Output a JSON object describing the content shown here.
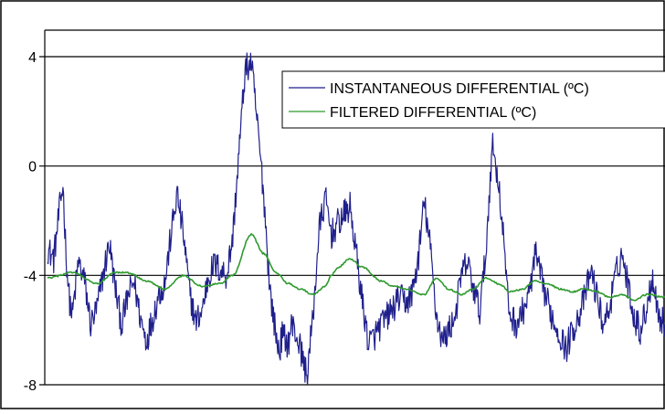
{
  "chart_data": {
    "type": "line",
    "ylim": [
      -8,
      4
    ],
    "yticks": [
      4,
      0,
      -4,
      -8
    ],
    "ytick_labels": [
      "4",
      "0",
      "-4",
      "-8"
    ],
    "grid": "horizontal",
    "legend_position": "top-right",
    "x_range": [
      0,
      100
    ],
    "series": [
      {
        "name": "INSTANTANEOUS DIFFERENTIAL (ºC)",
        "color": "#1f1f8c",
        "x": [
          0,
          1,
          2,
          2.5,
          3,
          3.5,
          4,
          5,
          6,
          7,
          8,
          9,
          10,
          11,
          12,
          13,
          14,
          15,
          16,
          17,
          18,
          19,
          20,
          21,
          22,
          23,
          24,
          25,
          26,
          27,
          28,
          29,
          30,
          31,
          32,
          33,
          34,
          35,
          36,
          37,
          37.5,
          38,
          39,
          39.5,
          40,
          41,
          42,
          43,
          44,
          45,
          46,
          47,
          48,
          49,
          50,
          51,
          52,
          53,
          54,
          55,
          56,
          57,
          58,
          59,
          60,
          61,
          62,
          63,
          64,
          65,
          66,
          67,
          68,
          69,
          70,
          71,
          72,
          73,
          74,
          74.5,
          75,
          76,
          77,
          78,
          79,
          80,
          81,
          82,
          83,
          84,
          85,
          86,
          87,
          88,
          89,
          90,
          91,
          92,
          93,
          94,
          95,
          96,
          97,
          98,
          99,
          100
        ],
        "values": [
          -3.0,
          -3.4,
          -1.5,
          -0.7,
          -3.2,
          -4.8,
          -5.5,
          -3.5,
          -4.2,
          -5.8,
          -5.2,
          -4.0,
          -2.8,
          -4.5,
          -5.8,
          -4.8,
          -4.2,
          -5.5,
          -6.4,
          -5.6,
          -4.7,
          -4.3,
          -2.5,
          -1.0,
          -2.5,
          -4.6,
          -5.7,
          -5.3,
          -4.1,
          -3.6,
          -3.8,
          -4.0,
          -2.6,
          0.5,
          3.5,
          3.8,
          1.5,
          -1.0,
          -4.5,
          -6.2,
          -6.8,
          -6.2,
          -6.5,
          -5.8,
          -6.0,
          -6.7,
          -7.7,
          -5.5,
          -2.3,
          -1.2,
          -2.5,
          -2.1,
          -1.8,
          -1.5,
          -3.2,
          -5.0,
          -6.5,
          -6.2,
          -5.8,
          -5.5,
          -5.2,
          -4.8,
          -5.0,
          -4.7,
          -3.5,
          -1.3,
          -3.0,
          -5.5,
          -6.4,
          -6.0,
          -5.5,
          -4.0,
          -3.5,
          -4.5,
          -5.3,
          -3.2,
          0.8,
          -0.5,
          -3.0,
          -4.8,
          -5.5,
          -5.8,
          -5.3,
          -4.7,
          -3.2,
          -4.2,
          -5.0,
          -5.7,
          -6.2,
          -6.7,
          -6.0,
          -5.5,
          -4.8,
          -3.8,
          -4.8,
          -5.8,
          -5.2,
          -4.0,
          -3.2,
          -4.3,
          -5.5,
          -6.0,
          -5.2,
          -4.0,
          -5.5,
          -5.8
        ]
      },
      {
        "name": "FILTERED DIFFERENTIAL (ºC)",
        "color": "#2e9a2e",
        "x": [
          0,
          4,
          8,
          11,
          13,
          16,
          19,
          22,
          25,
          28,
          30,
          33,
          35,
          37,
          39,
          41,
          43,
          45,
          46,
          47,
          49,
          51,
          54,
          56,
          58,
          61,
          63,
          65,
          67,
          69,
          71,
          73,
          75,
          77,
          79,
          81,
          83,
          85,
          87,
          89,
          91,
          93,
          95,
          97,
          100
        ],
        "values": [
          -4.1,
          -3.9,
          -4.3,
          -3.9,
          -3.9,
          -4.2,
          -4.5,
          -4.0,
          -4.4,
          -4.3,
          -4.0,
          -2.5,
          -3.2,
          -3.9,
          -4.3,
          -4.5,
          -4.7,
          -4.4,
          -4.0,
          -3.7,
          -3.4,
          -3.7,
          -4.2,
          -4.4,
          -4.5,
          -4.7,
          -4.1,
          -4.5,
          -4.7,
          -4.5,
          -4.1,
          -4.3,
          -4.6,
          -4.5,
          -4.2,
          -4.3,
          -4.5,
          -4.6,
          -4.5,
          -4.6,
          -4.8,
          -4.7,
          -4.9,
          -4.7,
          -4.8
        ]
      }
    ]
  }
}
